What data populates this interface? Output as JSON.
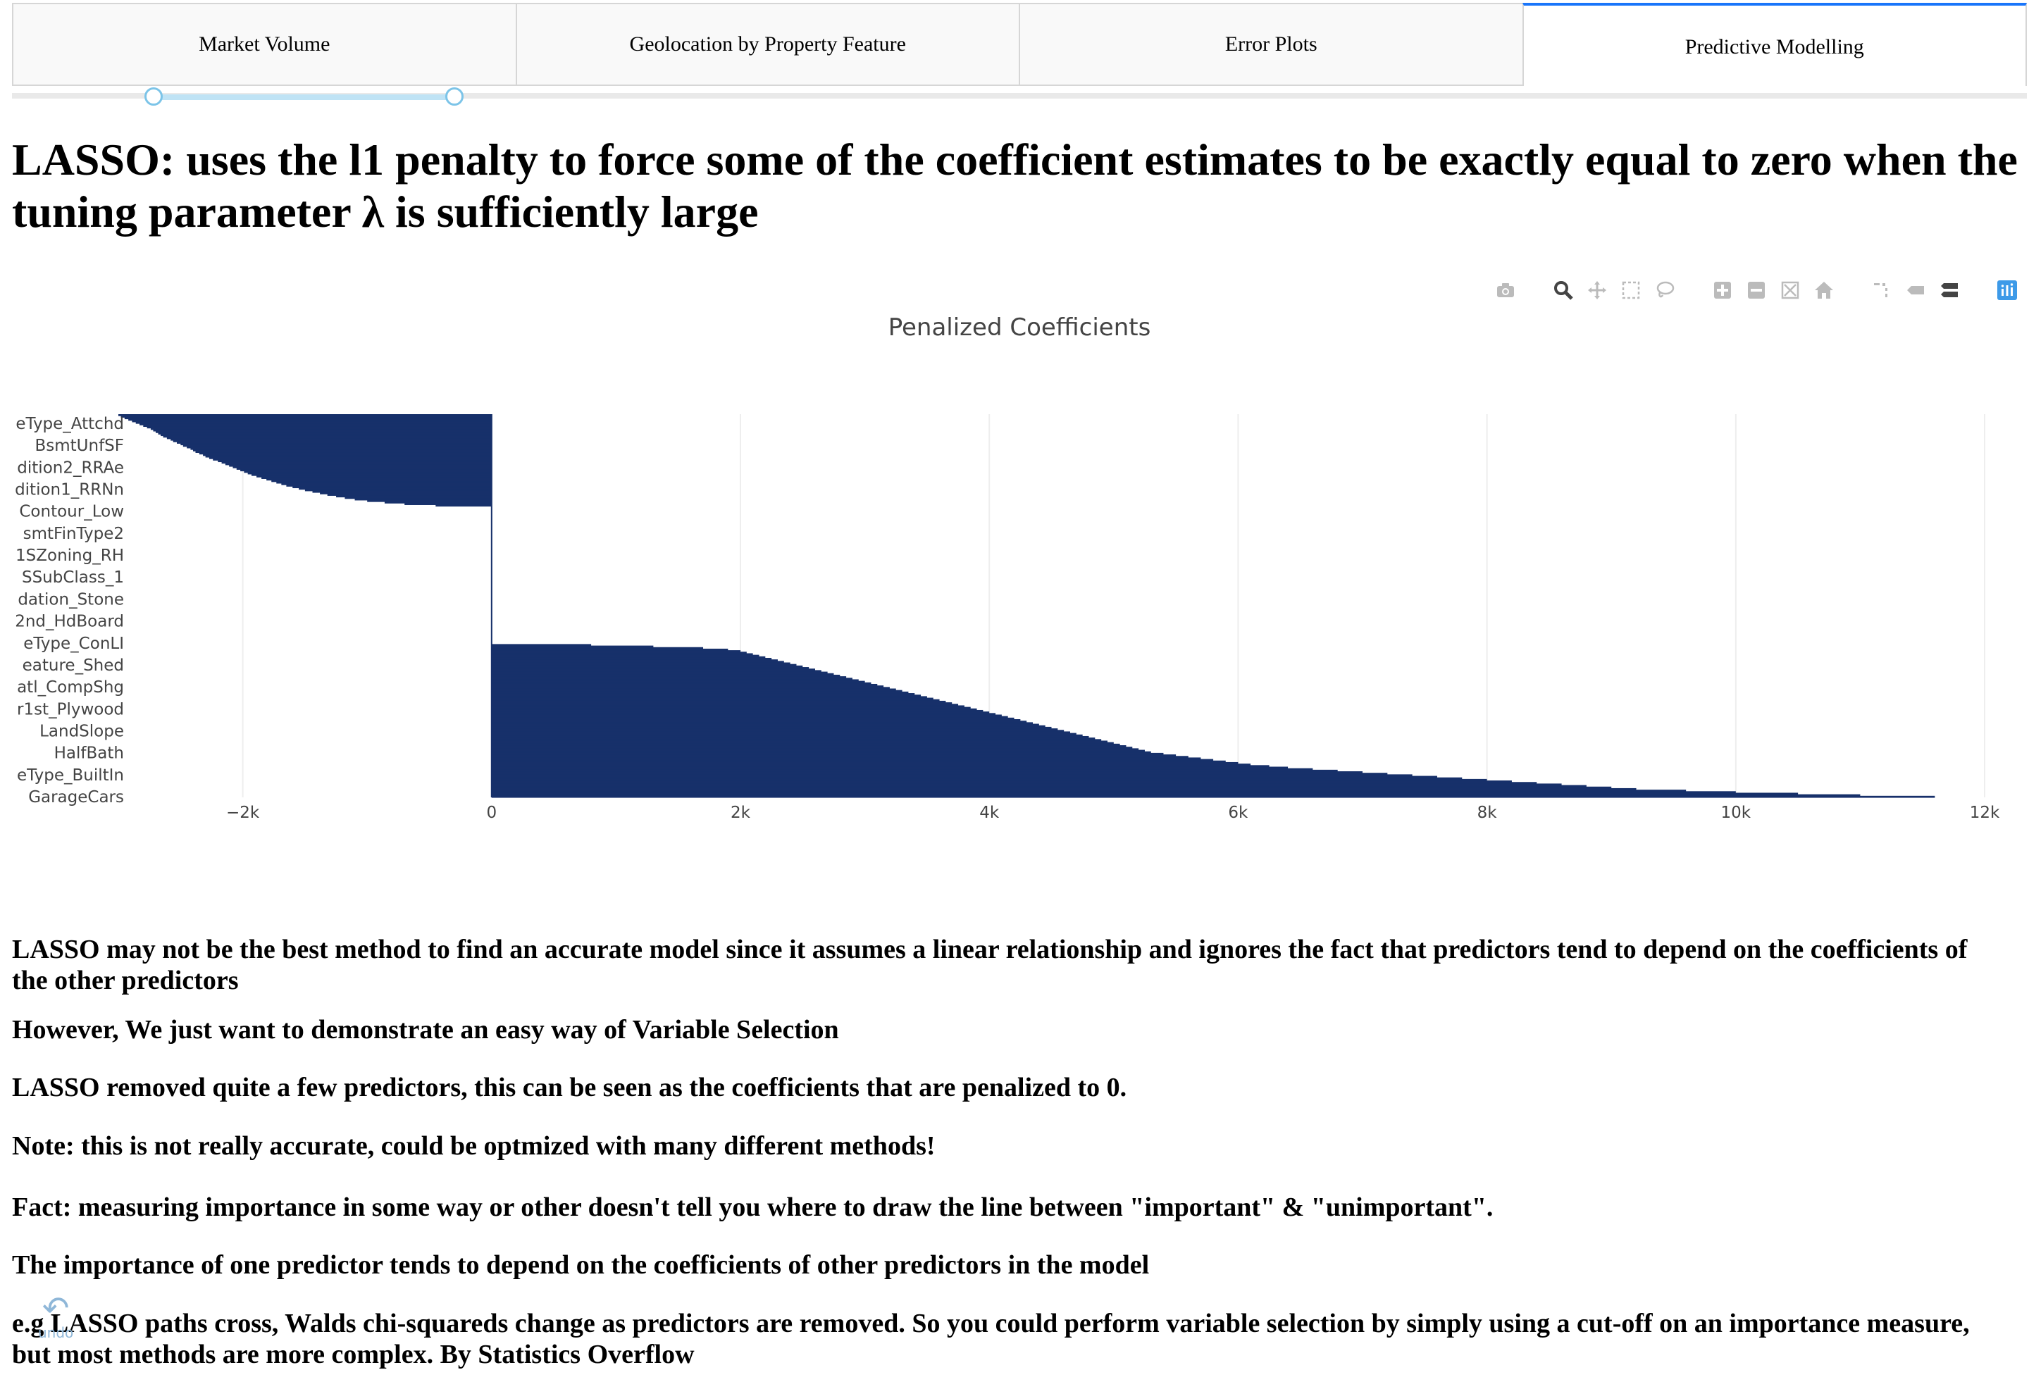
{
  "tabs": [
    {
      "label": "Market Volume",
      "active": false
    },
    {
      "label": "Geolocation by Property Feature",
      "active": false
    },
    {
      "label": "Error Plots",
      "active": false
    },
    {
      "label": "Predictive Modelling",
      "active": true
    }
  ],
  "heading": "LASSO: uses the l1 penalty to force some of the coefficient estimates to be exactly equal to zero when the tuning parameter λ is sufficiently large",
  "modebar": {
    "icons": [
      "camera-icon",
      "zoom-icon",
      "pan-icon",
      "box-select-icon",
      "lasso-select-icon",
      "zoom-in-icon",
      "zoom-out-icon",
      "autoscale-icon",
      "reset-axes-icon",
      "spike-lines-icon",
      "hover-closest-icon",
      "hover-compare-icon",
      "plotly-logo-icon"
    ]
  },
  "chart_data": {
    "type": "bar",
    "orientation": "horizontal",
    "title": "Penalized Coefficients",
    "xlabel": "",
    "ylabel": "",
    "xlim": [
      -3000,
      12300
    ],
    "x_ticks": [
      -2000,
      0,
      2000,
      4000,
      6000,
      8000,
      10000,
      12000
    ],
    "x_tick_labels": [
      "−2k",
      "0",
      "2k",
      "4k",
      "6k",
      "8k",
      "10k",
      "12k"
    ],
    "y_tick_labels": [
      "eType_Attchd",
      "BsmtUnfSF",
      "dition2_RRAe",
      "dition1_RRNn",
      "Contour_Low",
      "smtFinType2",
      "1SZoning_RH",
      "SSubClass_1",
      "dation_Stone",
      "2nd_HdBoard",
      "eType_ConLI",
      "eature_Shed",
      "atl_CompShg",
      "r1st_Plywood",
      "LandSlope",
      "HalfBath",
      "eType_BuiltIn",
      "GarageCars"
    ],
    "bar_color": "#17306a",
    "grid": true,
    "negative_count": 60,
    "zero_count": 90,
    "positive_count": 100,
    "negative_values": [
      -3000,
      -2980,
      -2950,
      -2920,
      -2890,
      -2860,
      -2830,
      -2800,
      -2770,
      -2740,
      -2720,
      -2700,
      -2680,
      -2660,
      -2640,
      -2610,
      -2580,
      -2560,
      -2530,
      -2500,
      -2480,
      -2450,
      -2420,
      -2400,
      -2380,
      -2350,
      -2320,
      -2300,
      -2270,
      -2240,
      -2200,
      -2170,
      -2140,
      -2110,
      -2080,
      -2050,
      -2020,
      -1990,
      -1960,
      -1930,
      -1890,
      -1850,
      -1810,
      -1770,
      -1730,
      -1690,
      -1650,
      -1600,
      -1550,
      -1500,
      -1440,
      -1380,
      -1320,
      -1250,
      -1180,
      -1100,
      -1000,
      -860,
      -700,
      -450
    ],
    "positive_values": [
      11600,
      11000,
      10500,
      10000,
      9600,
      9200,
      9000,
      8800,
      8600,
      8400,
      8200,
      8000,
      7800,
      7600,
      7400,
      7200,
      7000,
      6800,
      6600,
      6400,
      6250,
      6100,
      6000,
      5900,
      5800,
      5700,
      5600,
      5500,
      5400,
      5300,
      5250,
      5200,
      5150,
      5100,
      5050,
      5000,
      4950,
      4900,
      4850,
      4800,
      4750,
      4700,
      4650,
      4600,
      4550,
      4500,
      4450,
      4400,
      4350,
      4300,
      4250,
      4200,
      4150,
      4100,
      4050,
      4000,
      3950,
      3900,
      3850,
      3800,
      3750,
      3700,
      3650,
      3600,
      3550,
      3500,
      3450,
      3400,
      3350,
      3300,
      3250,
      3200,
      3150,
      3100,
      3050,
      3000,
      2950,
      2900,
      2850,
      2800,
      2750,
      2700,
      2650,
      2600,
      2550,
      2500,
      2450,
      2400,
      2350,
      2300,
      2250,
      2200,
      2150,
      2100,
      2050,
      2000,
      1900,
      1700,
      1300,
      800
    ]
  },
  "paragraphs": [
    "LASSO may not be the best method to find an accurate model since it assumes a linear relationship and ignores the fact that predictors tend to depend on the coefficients of the other predictors",
    "However, We just want to demonstrate an easy way of Variable Selection",
    "LASSO removed quite a few predictors, this can be seen as the coefficients that are penalized to 0.",
    "Note: this is not really accurate, could be optmized with many different methods!",
    "Fact: measuring importance in some way or other doesn't tell you where to draw the line between \"important\" & \"unimportant\".",
    "The importance of one predictor tends to depend on the coefficients of other predictors in the model",
    "e.g LASSO paths cross, Walds chi-squareds change as predictors are removed. So you could perform variable selection by simply using a cut-off on an importance measure, but most methods are more complex. By Statistics Overflow"
  ],
  "undo_label": "undo"
}
